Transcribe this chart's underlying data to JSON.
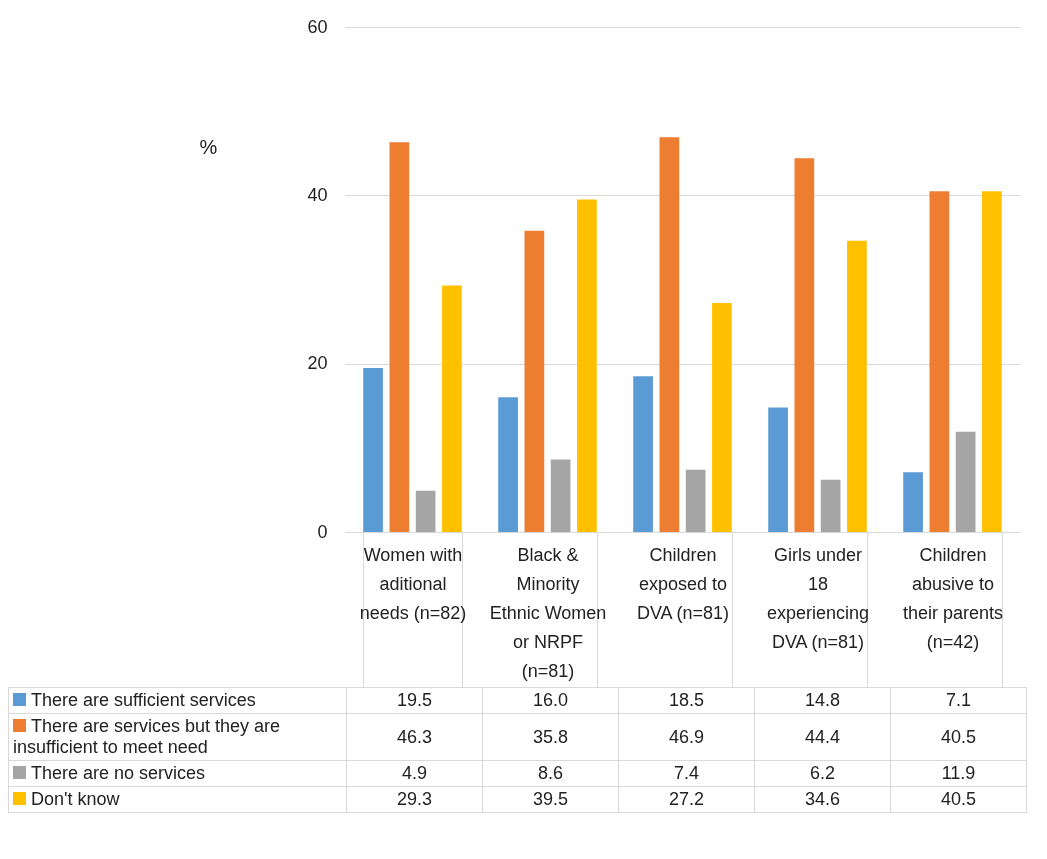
{
  "chart_data": {
    "type": "bar",
    "ylabel": "%",
    "categories": [
      "Women with aditional needs (n=82)",
      "Black & Minority Ethnic Women or NRPF (n=81)",
      "Children exposed to DVA (n=81)",
      "Girls under 18 experiencing DVA (n=81)",
      "Children abusive to their parents (n=42)"
    ],
    "series": [
      {
        "name": "There are sufficient services",
        "color": "#5b9bd5",
        "values": [
          19.5,
          16.0,
          18.5,
          14.8,
          7.1
        ],
        "value_labels": [
          "19.5",
          "16.0",
          "18.5",
          "14.8",
          "7.1"
        ]
      },
      {
        "name": "There are services but they are insufficient to meet need",
        "color": "#ed7d31",
        "values": [
          46.3,
          35.8,
          46.9,
          44.4,
          40.5
        ],
        "value_labels": [
          "46.3",
          "35.8",
          "46.9",
          "44.4",
          "40.5"
        ]
      },
      {
        "name": "There are no services",
        "color": "#a5a5a5",
        "values": [
          4.9,
          8.6,
          7.4,
          6.2,
          11.9
        ],
        "value_labels": [
          "4.9",
          "8.6",
          "7.4",
          "6.2",
          "11.9"
        ]
      },
      {
        "name": "Don't know",
        "color": "#ffc000",
        "values": [
          29.3,
          39.5,
          27.2,
          34.6,
          40.5
        ],
        "value_labels": [
          "29.3",
          "39.5",
          "27.2",
          "34.6",
          "40.5"
        ]
      }
    ],
    "ylim": [
      0,
      60
    ],
    "yticks": [
      0,
      20,
      40,
      60
    ],
    "grid": "y",
    "legend": "bottom left"
  }
}
